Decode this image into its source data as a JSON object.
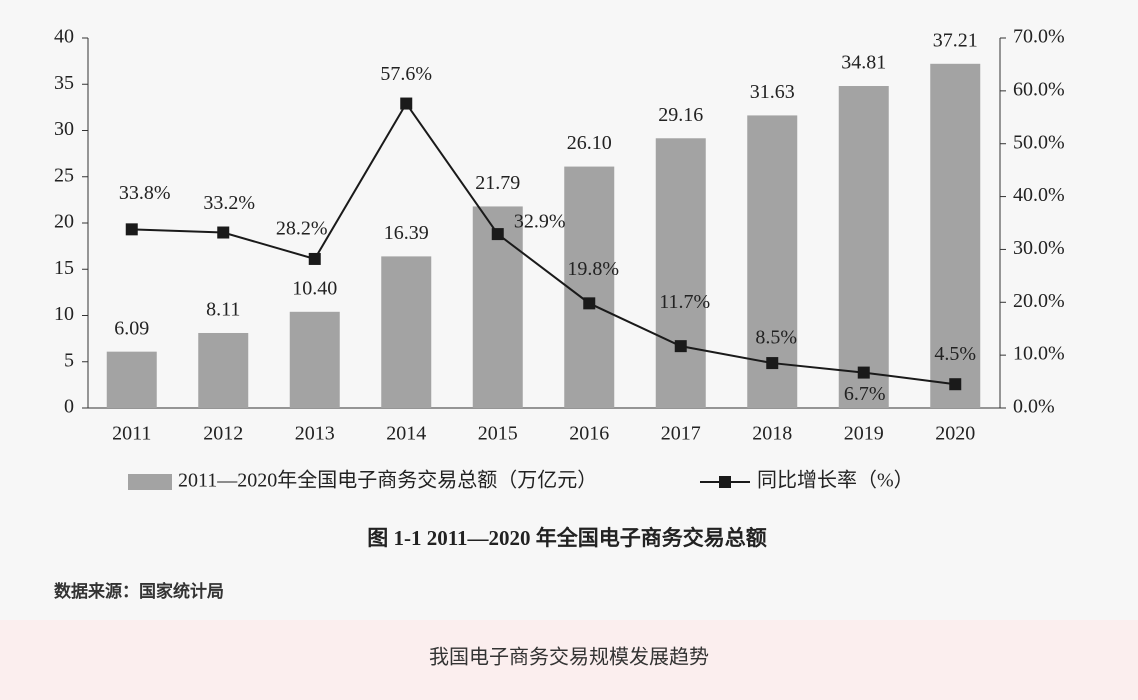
{
  "chart_data": {
    "type": "bar_line",
    "categories": [
      "2011",
      "2012",
      "2013",
      "2014",
      "2015",
      "2016",
      "2017",
      "2018",
      "2019",
      "2020"
    ],
    "series": [
      {
        "name": "2011—2020年全国电子商务交易总额（万亿元）",
        "type": "bar",
        "color": "#a3a3a3",
        "values": [
          6.09,
          8.11,
          10.4,
          16.39,
          21.79,
          26.1,
          29.16,
          31.63,
          34.81,
          37.21
        ],
        "value_labels": [
          "6.09",
          "8.11",
          "10.40",
          "16.39",
          "21.79",
          "26.10",
          "29.16",
          "31.63",
          "34.81",
          "37.21"
        ]
      },
      {
        "name": "同比增长率（%）",
        "type": "line",
        "axis": "y2",
        "color": "#1a1a1a",
        "values": [
          33.8,
          33.2,
          28.2,
          57.6,
          32.9,
          19.8,
          11.7,
          8.5,
          6.7,
          4.5
        ],
        "value_labels": [
          "33.8%",
          "33.2%",
          "28.2%",
          "57.6%",
          "32.9%",
          "19.8%",
          "11.7%",
          "8.5%",
          "6.7%",
          "4.5%"
        ]
      }
    ],
    "ylim": [
      0,
      40
    ],
    "yticks": [
      0,
      5,
      10,
      15,
      20,
      25,
      30,
      35,
      40
    ],
    "y2lim": [
      0,
      70
    ],
    "y2ticks": [
      {
        "value": 0,
        "label": "0.0%"
      },
      {
        "value": 10,
        "label": "10.0%"
      },
      {
        "value": 20,
        "label": "20.0%"
      },
      {
        "value": 30,
        "label": "30.0%"
      },
      {
        "value": 40,
        "label": "40.0%"
      },
      {
        "value": 50,
        "label": "50.0%"
      },
      {
        "value": 60,
        "label": "60.0%"
      },
      {
        "value": 70,
        "label": "70.0%"
      }
    ],
    "legend": "bottom"
  },
  "caption": "图 1-1    2011—2020 年全国电子商务交易总额",
  "source": "数据来源：国家统计局",
  "footer": "我国电子商务交易规模发展趋势"
}
